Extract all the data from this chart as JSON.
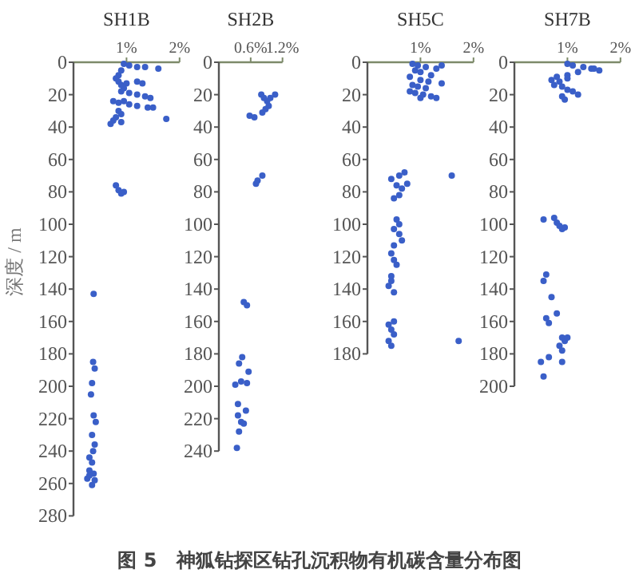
{
  "chart_data": [
    {
      "type": "scatter",
      "title": "SH1B",
      "ylabel": "深度 / m",
      "annotations": [
        "图 5　神狐钻探区钻孔沉积物有机碳含量分布图"
      ],
      "xlim": [
        0,
        2
      ],
      "xticks": [
        {
          "value": 1,
          "label": "1%"
        },
        {
          "value": 2,
          "label": "2%"
        }
      ],
      "ylim": [
        280,
        0
      ],
      "yticks": [
        0,
        20,
        40,
        60,
        80,
        100,
        120,
        140,
        160,
        180,
        200,
        220,
        240,
        260,
        280
      ],
      "marker": "circle",
      "grid": false,
      "series": [
        {
          "color": "#3a5fc8",
          "x": [
            0.95,
            1.05,
            1.2,
            1.35,
            1.6,
            0.9,
            0.85,
            0.8,
            0.85,
            0.9,
            1.0,
            1.2,
            1.3,
            0.95,
            0.9,
            1.05,
            1.2,
            1.35,
            1.45,
            0.75,
            0.85,
            0.95,
            1.05,
            1.2,
            1.4,
            1.5,
            0.85,
            0.9,
            0.8,
            0.75,
            0.7,
            0.9,
            1.75,
            0.8,
            0.85,
            0.95,
            0.9,
            0.38,
            0.37,
            0.4,
            0.35,
            0.33,
            0.38,
            0.42,
            0.35,
            0.4,
            0.37,
            0.3,
            0.35,
            0.3,
            0.38,
            0.26,
            0.4,
            0.35,
            0.3
          ],
          "values": [
            1,
            2,
            3,
            3,
            4,
            5,
            8,
            10,
            12,
            14,
            13,
            12,
            13,
            16,
            18,
            19,
            20,
            21,
            22,
            24,
            25,
            24,
            26,
            27,
            28,
            28,
            30,
            32,
            34,
            36,
            38,
            37,
            35,
            76,
            79,
            80,
            81,
            143,
            185,
            189,
            198,
            205,
            218,
            222,
            230,
            236,
            240,
            244,
            247,
            252,
            254,
            257,
            258,
            261,
            255
          ]
        }
      ]
    },
    {
      "type": "scatter",
      "title": "SH2B",
      "xlim": [
        0,
        1.2
      ],
      "xticks": [
        {
          "value": 0.6,
          "label": "0.6%"
        },
        {
          "value": 1.2,
          "label": "1.2%"
        }
      ],
      "ylim": [
        240,
        0
      ],
      "yticks": [
        0,
        20,
        40,
        60,
        80,
        100,
        120,
        140,
        160,
        180,
        200,
        220,
        240
      ],
      "marker": "circle",
      "grid": false,
      "series": [
        {
          "color": "#3a5fc8",
          "x": [
            0.8,
            0.85,
            0.91,
            0.97,
            1.06,
            0.82,
            0.88,
            0.94,
            0.58,
            0.67,
            0.73,
            0.82,
            0.7,
            0.47,
            0.53,
            0.44,
            0.38,
            0.56,
            0.31,
            0.42,
            0.36,
            0.51,
            0.36,
            0.42,
            0.47,
            0.38,
            0.34,
            0.53
          ],
          "values": [
            20,
            22,
            24,
            22,
            20,
            31,
            29,
            27,
            33,
            34,
            73,
            70,
            75,
            148,
            150,
            182,
            186,
            191,
            199,
            197,
            211,
            215,
            218,
            222,
            223,
            228,
            238,
            198
          ]
        }
      ]
    },
    {
      "type": "scatter",
      "title": "SH5C",
      "xlim": [
        0,
        2
      ],
      "xticks": [
        {
          "value": 1,
          "label": "1%"
        },
        {
          "value": 2,
          "label": "2%"
        }
      ],
      "ylim": [
        180,
        0
      ],
      "yticks": [
        0,
        20,
        40,
        60,
        80,
        100,
        120,
        140,
        160,
        180
      ],
      "marker": "circle",
      "grid": false,
      "series": [
        {
          "color": "#3a5fc8",
          "x": [
            0.85,
            0.95,
            1.1,
            1.3,
            1.4,
            0.9,
            1.0,
            1.2,
            0.8,
            1.0,
            1.15,
            1.4,
            0.85,
            0.95,
            1.1,
            0.8,
            0.9,
            1.05,
            1.2,
            1.3,
            1.0,
            0.45,
            0.6,
            0.7,
            0.55,
            0.65,
            0.75,
            0.6,
            0.5,
            1.59,
            0.55,
            0.5,
            0.6,
            0.65,
            0.5,
            0.45,
            0.5,
            0.55,
            0.6,
            0.45,
            0.4,
            0.5,
            0.45,
            0.4,
            0.45,
            0.5,
            0.4,
            0.45,
            0.5,
            1.72
          ],
          "values": [
            1,
            2,
            3,
            4,
            2,
            5,
            6,
            8,
            9,
            11,
            12,
            13,
            14,
            15,
            16,
            18,
            19,
            20,
            21,
            22,
            22,
            72,
            70,
            68,
            76,
            78,
            75,
            82,
            84,
            70,
            97,
            103,
            106,
            110,
            113,
            118,
            122,
            125,
            100,
            135,
            138,
            142,
            132,
            162,
            165,
            168,
            172,
            175,
            160,
            172
          ]
        }
      ]
    },
    {
      "type": "scatter",
      "title": "SH7B",
      "xlim": [
        0,
        2
      ],
      "xticks": [
        {
          "value": 1,
          "label": "1%"
        },
        {
          "value": 2,
          "label": "2%"
        }
      ],
      "ylim": [
        200,
        0
      ],
      "yticks": [
        0,
        20,
        40,
        60,
        80,
        100,
        120,
        140,
        160,
        180,
        200
      ],
      "marker": "circle",
      "grid": false,
      "series": [
        {
          "color": "#3a5fc8",
          "x": [
            1.0,
            1.1,
            1.3,
            1.45,
            1.6,
            1.5,
            1.2,
            1.0,
            0.8,
            0.7,
            0.85,
            1.0,
            0.75,
            0.9,
            1.0,
            1.1,
            1.2,
            0.9,
            0.95,
            0.55,
            0.75,
            0.8,
            0.85,
            0.9,
            0.95,
            0.6,
            0.55,
            0.7,
            0.6,
            0.65,
            0.8,
            0.9,
            0.95,
            1.0,
            0.85,
            0.9,
            0.65,
            0.5,
            0.9,
            0.55
          ],
          "values": [
            1,
            2,
            3,
            4,
            5,
            4,
            6,
            8,
            9,
            11,
            12,
            10,
            14,
            15,
            17,
            18,
            20,
            21,
            23,
            97,
            96,
            99,
            101,
            103,
            102,
            131,
            135,
            145,
            158,
            161,
            155,
            170,
            172,
            170,
            175,
            178,
            182,
            185,
            185,
            194
          ]
        }
      ]
    }
  ]
}
